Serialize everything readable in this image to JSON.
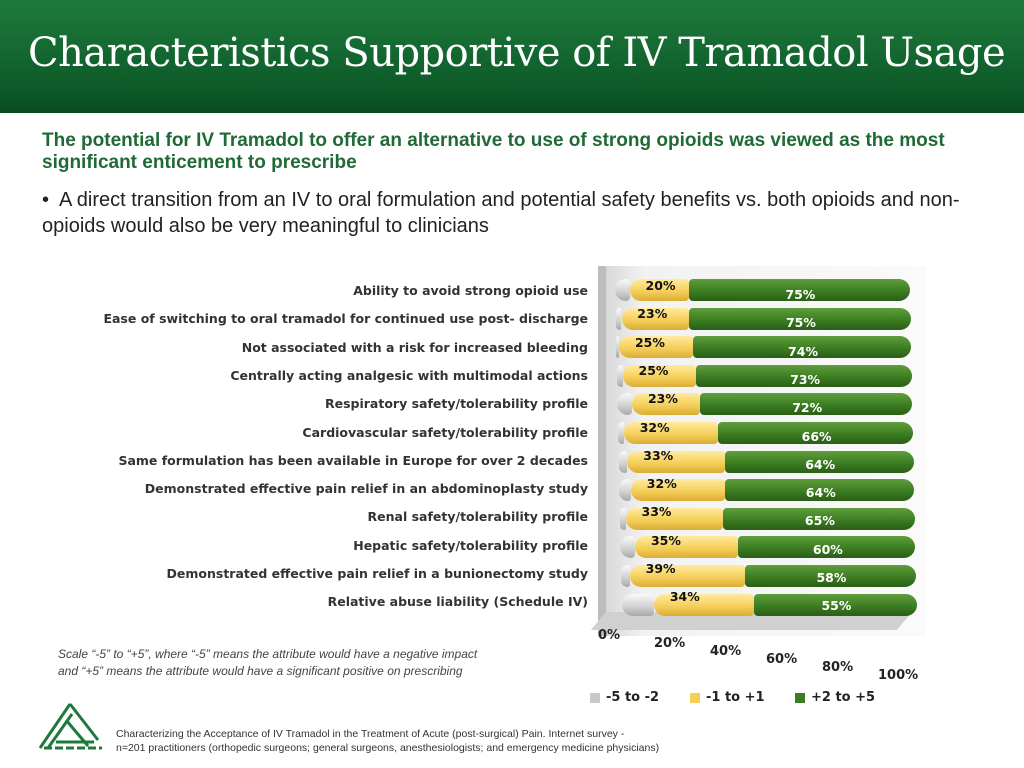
{
  "header": {
    "title": "Characteristics Supportive of IV Tramadol Usage"
  },
  "subtitle": "The potential for IV Tramadol to offer an alternative to use of strong opioids was viewed as the most significant enticement to prescribe",
  "bullet": "A direct transition from an IV to oral formulation and potential safety benefits vs. both opioids and non-opioids would also be very meaningful to clinicians",
  "scale_note": [
    "Scale “-5” to “+5”, where  “-5” means the attribute would have a negative impact",
    "and “+5” means the attribute would  have a significant positive on prescribing"
  ],
  "footer": [
    "Characterizing  the Acceptance of IV Tramadol  in the Treatment  of Acute (post-surgical) Pain.  Internet survey -",
    "n=201 practitioners (orthopedic surgeons; general surgeons, anesthesiologists; and emergency medicine physicians)"
  ],
  "chart_data": {
    "type": "bar",
    "stacked": true,
    "orientation": "horizontal",
    "categories": [
      "Ability to avoid strong opioid use",
      "Ease of switching to oral tramadol for continued use post- discharge",
      "Not associated with a risk for increased bleeding",
      "Centrally acting analgesic with multimodal actions",
      "Respiratory safety/tolerability profile",
      "Cardiovascular safety/tolerability profile",
      "Same formulation has been available in Europe for over 2 decades",
      "Demonstrated effective pain relief in an abdominoplasty study",
      "Renal safety/tolerability profile",
      "Hepatic safety/tolerability profile",
      "Demonstrated effective pain relief in a bunionectomy study",
      "Relative abuse liability (Schedule IV)"
    ],
    "series": [
      {
        "name": "-5 to -2",
        "color": "#c8c8c8",
        "values": [
          5,
          2,
          1,
          2,
          5,
          2,
          3,
          4,
          2,
          5,
          3,
          11
        ],
        "labels_shown": false
      },
      {
        "name": "-1 to +1",
        "color": "#f6cf5a",
        "values": [
          20,
          23,
          25,
          25,
          23,
          32,
          33,
          32,
          33,
          35,
          39,
          34
        ]
      },
      {
        "name": "+2 to +5",
        "color": "#3b7d22",
        "values": [
          75,
          75,
          74,
          73,
          72,
          66,
          64,
          64,
          65,
          60,
          58,
          55
        ]
      }
    ],
    "x_ticks": [
      "0%",
      "20%",
      "40%",
      "60%",
      "80%",
      "100%"
    ],
    "xlim": [
      0,
      100
    ],
    "legend": "bottom"
  }
}
